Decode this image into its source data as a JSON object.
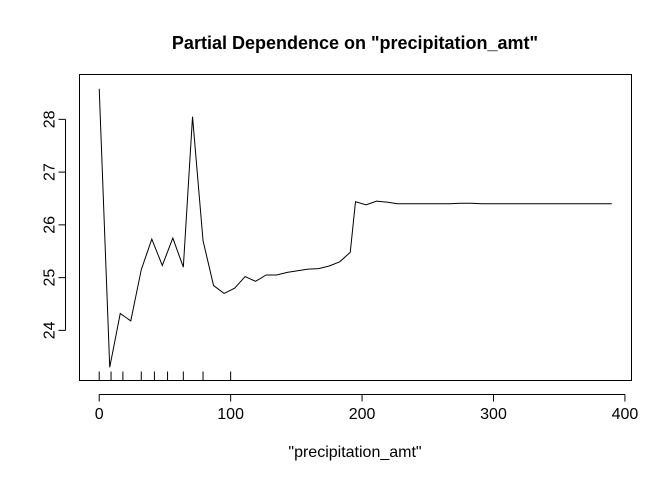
{
  "chart_data": {
    "type": "line",
    "title": "Partial Dependence on \"precipitation_amt\"",
    "xlabel": "\"precipitation_amt\"",
    "ylabel": "",
    "xlim": [
      -15,
      405
    ],
    "ylim": [
      23.05,
      28.85
    ],
    "xticks": [
      0,
      100,
      200,
      300,
      400
    ],
    "yticks": [
      24,
      25,
      26,
      27,
      28
    ],
    "grid": false,
    "legend": "none",
    "series": [
      {
        "x": [
          0,
          8,
          16,
          24,
          32,
          40,
          48,
          56,
          64,
          71,
          79,
          87,
          95,
          103,
          111,
          119,
          127,
          135,
          143,
          151,
          159,
          167,
          175,
          183,
          191,
          195,
          203,
          211,
          219,
          227,
          235,
          243,
          251,
          259,
          267,
          275,
          283,
          291,
          299,
          307,
          315,
          323,
          331,
          339,
          347,
          355,
          363,
          371,
          379,
          390
        ],
        "y": [
          28.58,
          23.3,
          24.32,
          24.18,
          25.15,
          25.73,
          25.23,
          25.75,
          25.2,
          28.05,
          25.7,
          24.85,
          24.7,
          24.8,
          25.02,
          24.93,
          25.05,
          25.05,
          25.1,
          25.13,
          25.16,
          25.17,
          25.22,
          25.3,
          25.48,
          26.44,
          26.38,
          26.45,
          26.43,
          26.4,
          26.4,
          26.4,
          26.4,
          26.4,
          26.4,
          26.41,
          26.41,
          26.4,
          26.4,
          26.4,
          26.4,
          26.4,
          26.4,
          26.4,
          26.4,
          26.4,
          26.4,
          26.4,
          26.4,
          26.4
        ]
      }
    ],
    "rug": [
      0,
      9,
      18,
      32,
      42,
      52,
      64,
      79,
      100
    ],
    "line_color": "#000000"
  }
}
